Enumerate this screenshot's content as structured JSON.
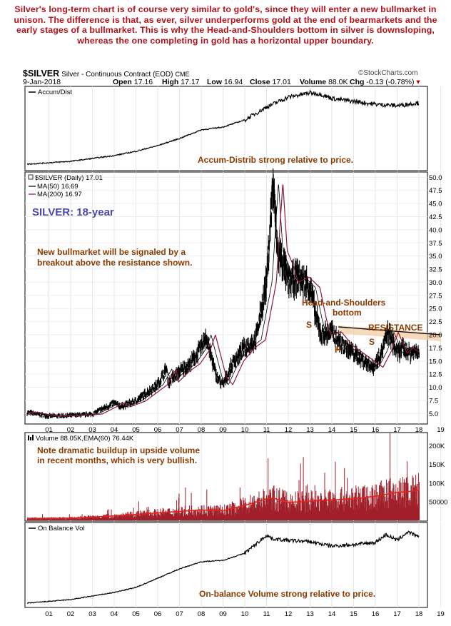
{
  "intro_text": "Silver's long-term chart is of course very similar to gold's, since they will enter a new bullmarket in unison. The difference is that, as ever, silver underperforms gold at the end of bearmarkets and the early stages of a bullmarket. This is why the Head-and-Shoulders bottom in silver is downsloping, whereas the one completing in gold has a horizontal upper boundary.",
  "header": {
    "symbol": "$SILVER",
    "name": "Silver - Continuous Contract (EOD)",
    "exchange": "CME",
    "source": "©StockCharts.com",
    "date": "9-Jan-2018",
    "open_label": "Open",
    "open": "17.16",
    "high_label": "High",
    "high": "17.17",
    "low_label": "Low",
    "low": "16.94",
    "close_label": "Close",
    "close": "17.01",
    "volume_label": "Volume",
    "volume": "88.0K",
    "chg_label": "Chg",
    "chg": "-0.13 (-0.78%)"
  },
  "colors": {
    "note": "#8b3a00",
    "accent_blue": "#4a49b0",
    "volume_fill": "#a11f2a",
    "ema": "#e8201a",
    "ma50": "#000000",
    "ma200": "#8b1a3a",
    "resistance": "#f4c9a0"
  },
  "chart_data": [
    {
      "type": "line",
      "panel": "accum_dist",
      "legend": "Accum/Dist",
      "annotation": "Accum-Distrib strong relative to price.",
      "x": [
        2000.0,
        2002.0,
        2004.0,
        2005.0,
        2006.0,
        2007.0,
        2008.0,
        2009.0,
        2010.0,
        2011.0,
        2012.0,
        2013.0,
        2013.5,
        2014.0,
        2015.0,
        2016.0,
        2017.0,
        2018.0
      ],
      "values": [
        0,
        4,
        12,
        18,
        26,
        36,
        48,
        52,
        62,
        80,
        94,
        100,
        98,
        92,
        88,
        84,
        82,
        86
      ]
    },
    {
      "type": "line",
      "panel": "price",
      "legend": "$SILVER (Daily) 17.01",
      "ma_legends": [
        "MA(50) 16.69",
        "MA(200) 16.97"
      ],
      "title": "SILVER: 18-year",
      "annotations": [
        "New bullmarket will be signaled by a",
        "breakout above the resistance shown.",
        "Head-and-Shoulders",
        "bottom",
        "RESISTANCE",
        "S",
        "H",
        "S"
      ],
      "ylim": [
        3.0,
        51.0
      ],
      "y_ticks": [
        5.0,
        7.5,
        10.0,
        12.5,
        15.0,
        17.5,
        20.0,
        22.5,
        25.0,
        27.5,
        30.0,
        32.5,
        35.0,
        37.5,
        40.0,
        42.5,
        45.0,
        47.5,
        50.0
      ],
      "x_ticks": [
        "01",
        "02",
        "03",
        "04",
        "05",
        "06",
        "07",
        "08",
        "09",
        "10",
        "11",
        "12",
        "13",
        "14",
        "15",
        "16",
        "17",
        "18",
        "19"
      ],
      "x": [
        2000.0,
        2001.0,
        2002.0,
        2003.0,
        2004.0,
        2004.3,
        2005.0,
        2006.0,
        2006.4,
        2006.5,
        2007.0,
        2007.5,
        2008.0,
        2008.2,
        2008.7,
        2009.0,
        2009.5,
        2010.0,
        2010.5,
        2011.0,
        2011.3,
        2011.5,
        2011.8,
        2012.0,
        2012.5,
        2013.0,
        2013.3,
        2013.5,
        2014.0,
        2014.5,
        2015.0,
        2015.5,
        2015.9,
        2016.3,
        2016.6,
        2017.0,
        2017.3,
        2017.6,
        2018.0
      ],
      "values": [
        5.2,
        4.5,
        4.6,
        4.9,
        7.0,
        6.3,
        7.4,
        10.5,
        13.5,
        11.0,
        13.0,
        14.5,
        17.5,
        20.0,
        12.0,
        10.5,
        15.0,
        17.5,
        19.0,
        30.0,
        49.0,
        36.0,
        33.0,
        30.0,
        31.0,
        29.0,
        23.0,
        20.0,
        20.5,
        18.0,
        16.5,
        15.0,
        13.8,
        17.0,
        20.5,
        16.5,
        17.5,
        16.5,
        17.0
      ],
      "resistance_line": {
        "x": [
          2014.3,
          2019.0
        ],
        "values": [
          21.5,
          20.0
        ]
      }
    },
    {
      "type": "bar",
      "panel": "volume",
      "legend": [
        "Volume 88.05K,",
        "EMA(60) 76.44K"
      ],
      "annotations": [
        "Note dramatic buildup in upside volume",
        "in recent months, which is  very bullish."
      ],
      "y_ticks": [
        "50000",
        "100K",
        "150K",
        "200K"
      ],
      "x": [
        2000.0,
        2002.0,
        2004.0,
        2006.0,
        2008.0,
        2009.0,
        2010.0,
        2011.0,
        2011.3,
        2012.0,
        2013.0,
        2014.0,
        2015.0,
        2016.0,
        2017.0,
        2018.0
      ],
      "ema_values": [
        5000,
        6000,
        12000,
        20000,
        28000,
        26000,
        40000,
        58000,
        60000,
        48000,
        52000,
        55000,
        58000,
        65000,
        75000,
        80000
      ]
    },
    {
      "type": "line",
      "panel": "obv",
      "legend": "On Balance Vol",
      "annotation": "On-balance Volume strong relative to price.",
      "x": [
        2000.0,
        2002.0,
        2004.0,
        2005.0,
        2006.0,
        2007.0,
        2008.0,
        2009.0,
        2010.0,
        2011.0,
        2011.3,
        2012.0,
        2013.0,
        2014.0,
        2015.0,
        2016.0,
        2016.5,
        2017.0,
        2017.5,
        2018.0
      ],
      "values": [
        0,
        5,
        15,
        22,
        35,
        48,
        58,
        60,
        70,
        95,
        90,
        88,
        86,
        80,
        82,
        85,
        96,
        88,
        100,
        92
      ],
      "x_ticks": [
        "01",
        "02",
        "03",
        "04",
        "05",
        "06",
        "07",
        "08",
        "09",
        "10",
        "11",
        "12",
        "13",
        "14",
        "15",
        "16",
        "17",
        "18",
        "19"
      ]
    }
  ]
}
